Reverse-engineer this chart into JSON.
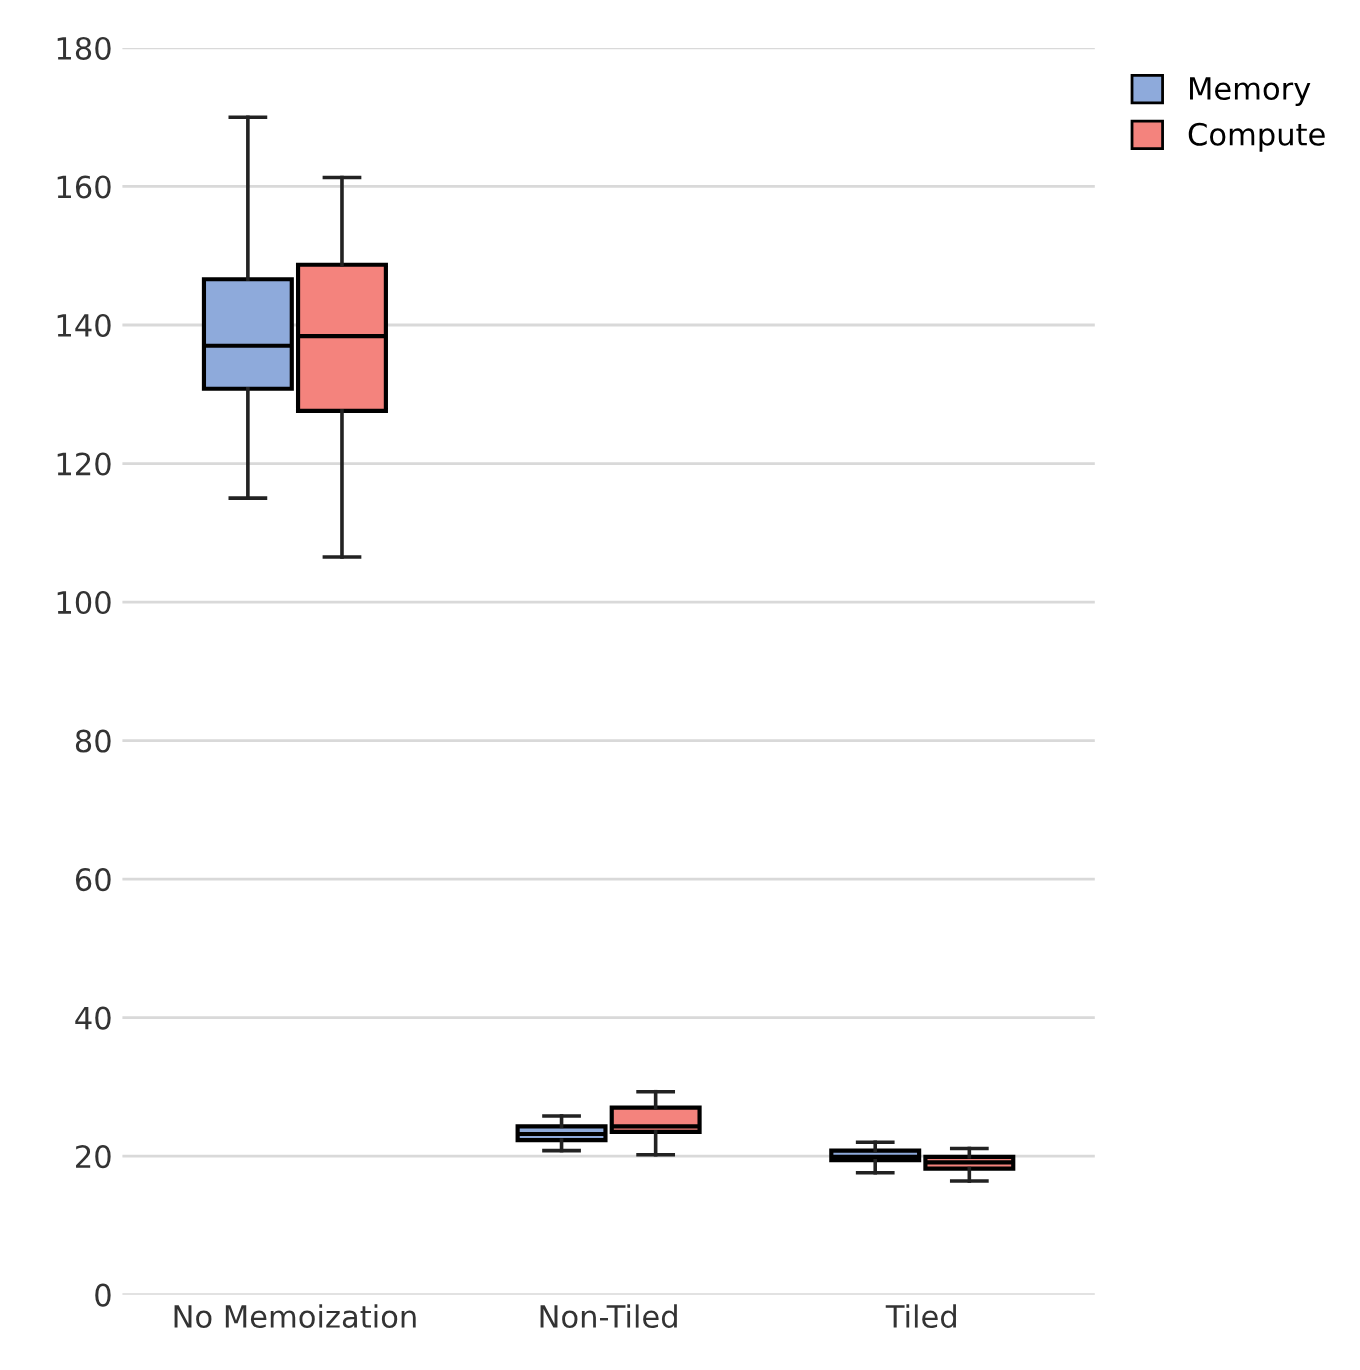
{
  "chart_data": {
    "type": "box",
    "categories": [
      "No Memoization",
      "Non-Tiled",
      "Tiled"
    ],
    "series": [
      {
        "name": "Memory",
        "color": "#8eaadb",
        "boxes": [
          {
            "low": 115,
            "q1": 130.8,
            "median": 137,
            "q3": 146.6,
            "high": 170
          },
          {
            "low": 20.8,
            "q1": 22.3,
            "median": 23.2,
            "q3": 24.3,
            "high": 25.8
          },
          {
            "low": 17.6,
            "q1": 19.4,
            "median": 19.9,
            "q3": 20.8,
            "high": 22
          }
        ]
      },
      {
        "name": "Compute",
        "color": "#f4837d",
        "boxes": [
          {
            "low": 106.5,
            "q1": 127.6,
            "median": 138.4,
            "q3": 148.7,
            "high": 161.3
          },
          {
            "low": 20.2,
            "q1": 23.5,
            "median": 24.3,
            "q3": 27,
            "high": 29.3
          },
          {
            "low": 16.4,
            "q1": 18.2,
            "median": 19.1,
            "q3": 19.9,
            "high": 21.1
          }
        ]
      }
    ],
    "ylim": [
      0,
      180
    ],
    "yticks": [
      0,
      20,
      40,
      60,
      80,
      100,
      120,
      140,
      160,
      180
    ],
    "grid": "y",
    "legend": "top right"
  }
}
